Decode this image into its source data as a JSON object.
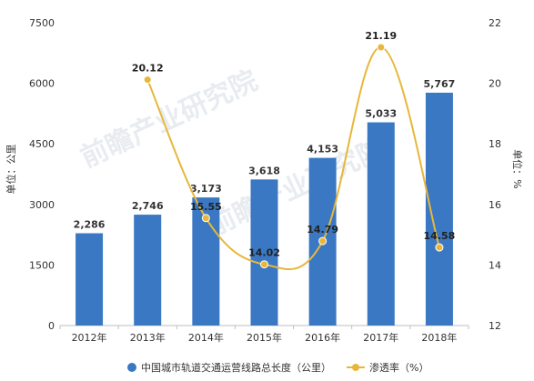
{
  "chart_data": {
    "type": "bar",
    "categories": [
      "2012年",
      "2013年",
      "2014年",
      "2015年",
      "2016年",
      "2017年",
      "2018年"
    ],
    "series": [
      {
        "name": "中国城市轨道交通运营线路总长度（公里）",
        "type": "bar",
        "axis": "left",
        "values": [
          2286,
          2746,
          3173,
          3618,
          4153,
          5033,
          5767
        ],
        "labels": [
          "2,286",
          "2,746",
          "3,173",
          "3,618",
          "4,153",
          "5,033",
          "5,767"
        ]
      },
      {
        "name": "渗透率（%）",
        "type": "line",
        "axis": "right",
        "values": [
          null,
          20.12,
          15.55,
          14.02,
          14.79,
          21.19,
          14.58
        ],
        "labels": [
          "",
          "20.12",
          "15.55",
          "14.02",
          "14.79",
          "21.19",
          "14.58"
        ]
      }
    ],
    "ylabel": "单位：公里",
    "ylabel_right": "单位：%",
    "ylim": [
      0,
      7500
    ],
    "ylim_right": [
      12,
      22
    ],
    "yticks": [
      "0",
      "1500",
      "3000",
      "4500",
      "6000",
      "7500"
    ],
    "yticks_right": [
      "12",
      "14",
      "16",
      "18",
      "20",
      "22"
    ],
    "grid": false,
    "legend": "bottom",
    "colors": {
      "bar": "#3a78c3",
      "line": "#e8b73a",
      "marker": "#e8b73a"
    }
  },
  "watermark": "前瞻产业研究院"
}
